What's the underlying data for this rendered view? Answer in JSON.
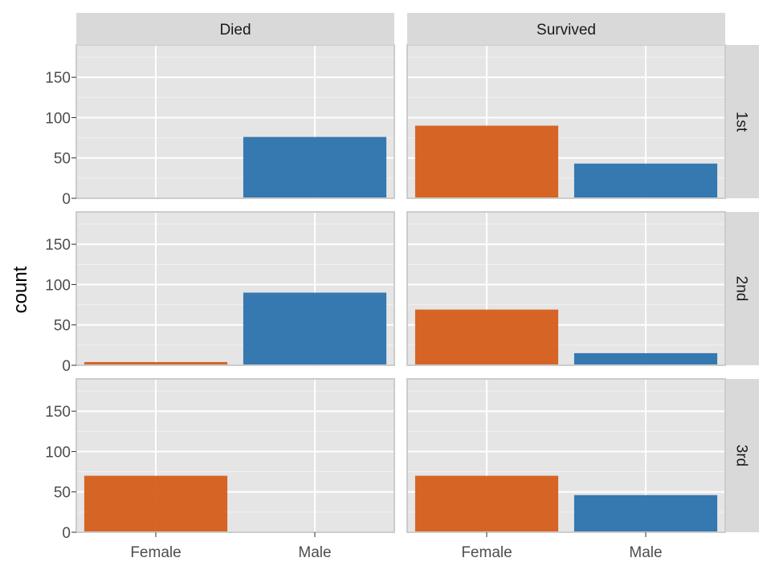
{
  "chart_data": {
    "type": "bar",
    "ylabel": "count",
    "xlabel": "",
    "ylim": [
      0,
      190
    ],
    "y_ticks": [
      0,
      50,
      100,
      150
    ],
    "categories": [
      "Female",
      "Male"
    ],
    "column_facets": [
      "Died",
      "Survived"
    ],
    "row_facets": [
      "1st",
      "2nd",
      "3rd"
    ],
    "colors": {
      "Female": "#d55e1a",
      "Male": "#2c72ad"
    },
    "panels": [
      {
        "row": "1st",
        "col": "Died",
        "values": [
          1,
          76
        ]
      },
      {
        "row": "1st",
        "col": "Survived",
        "values": [
          90,
          43
        ]
      },
      {
        "row": "2nd",
        "col": "Died",
        "values": [
          4,
          90
        ]
      },
      {
        "row": "2nd",
        "col": "Survived",
        "values": [
          69,
          15
        ]
      },
      {
        "row": "3rd",
        "col": "Died",
        "values": [
          70,
          0
        ]
      },
      {
        "row": "3rd",
        "col": "Survived",
        "values": [
          70,
          46
        ]
      }
    ]
  }
}
